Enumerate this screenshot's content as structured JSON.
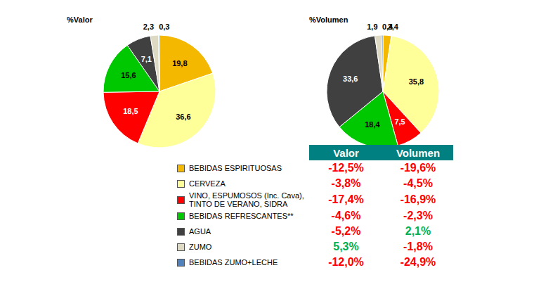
{
  "chart_data": [
    {
      "type": "pie",
      "title": "%Valor",
      "categories": [
        "BEBIDAS ESPIRITUOSAS",
        "CERVEZA",
        "VINO, ESPUMOSOS (Inc. Cava), TINTO DE VERANO, SIDRA",
        "BEBIDAS REFRESCANTES**",
        "AGUA",
        "ZUMO",
        "BEBIDAS ZUMO+LECHE"
      ],
      "values": [
        19.8,
        36.6,
        18.5,
        15.6,
        7.1,
        2.3,
        0.3
      ],
      "value_labels": [
        "19,8",
        "36,6",
        "18,5",
        "15,6",
        "7,1",
        "2,3",
        "0,3"
      ],
      "colors": [
        "#F5B800",
        "#FFFF99",
        "#FF0000",
        "#00C800",
        "#404040",
        "#DDD9C3",
        "#4F81BD"
      ],
      "data_labels": true
    },
    {
      "type": "pie",
      "title": "%Volumen",
      "categories": [
        "BEBIDAS ESPIRITUOSAS",
        "CERVEZA",
        "VINO, ESPUMOSOS (Inc. Cava), TINTO DE VERANO, SIDRA",
        "BEBIDAS REFRESCANTES**",
        "AGUA",
        "ZUMO",
        "BEBIDAS ZUMO+LECHE"
      ],
      "values": [
        2.4,
        35.8,
        7.5,
        18.4,
        33.6,
        1.9,
        0.4
      ],
      "value_labels": [
        "2,4",
        "35,8",
        "7,5",
        "18,4",
        "33,6",
        "1,9",
        "0,4"
      ],
      "colors": [
        "#F5B800",
        "#FFFF99",
        "#FF0000",
        "#00C800",
        "#404040",
        "#DDD9C3",
        "#4F81BD"
      ],
      "data_labels": true
    }
  ],
  "table": {
    "columns": [
      "Valor",
      "Volumen"
    ],
    "rows": [
      [
        "-12,5%",
        "-19,6%"
      ],
      [
        "-3,8%",
        "-4,5%"
      ],
      [
        "-17,4%",
        "-16,9%"
      ],
      [
        "-4,6%",
        "-2,3%"
      ],
      [
        "-5,2%",
        "2,1%"
      ],
      [
        "5,3%",
        "-1,8%"
      ],
      [
        "-12,0%",
        "-24,9%"
      ]
    ],
    "cell_colors": [
      [
        "#FF0000",
        "#FF0000"
      ],
      [
        "#FF0000",
        "#FF0000"
      ],
      [
        "#FF0000",
        "#FF0000"
      ],
      [
        "#FF0000",
        "#FF0000"
      ],
      [
        "#FF0000",
        "#00B050"
      ],
      [
        "#00B050",
        "#FF0000"
      ],
      [
        "#FF0000",
        "#FF0000"
      ]
    ]
  }
}
